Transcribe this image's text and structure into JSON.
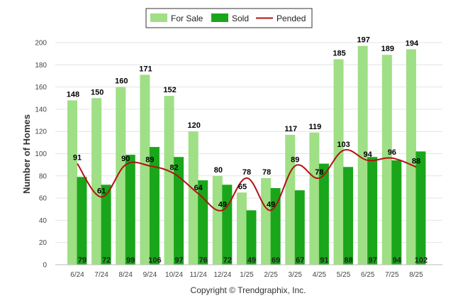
{
  "chart_data": {
    "type": "bar",
    "categories": [
      "6/24",
      "7/24",
      "8/24",
      "9/24",
      "10/24",
      "11/24",
      "12/24",
      "1/25",
      "2/25",
      "3/25",
      "4/25",
      "5/25",
      "6/25",
      "7/25",
      "8/25"
    ],
    "series": [
      {
        "name": "For Sale",
        "type": "bar",
        "color": "#9fdf85",
        "values": [
          148,
          150,
          160,
          171,
          152,
          120,
          80,
          65,
          78,
          117,
          119,
          185,
          197,
          189,
          194
        ]
      },
      {
        "name": "Sold",
        "type": "bar",
        "color": "#1aa61a",
        "values": [
          79,
          72,
          99,
          106,
          97,
          76,
          72,
          49,
          69,
          67,
          91,
          88,
          97,
          94,
          102
        ]
      },
      {
        "name": "Pended",
        "type": "line",
        "color": "#b31212",
        "values": [
          91,
          61,
          90,
          89,
          82,
          64,
          49,
          78,
          49,
          89,
          78,
          103,
          94,
          96,
          88
        ]
      }
    ],
    "ylabel": "Number of Homes",
    "ylim": [
      0,
      200
    ],
    "yticks": [
      "0",
      "20",
      "40",
      "60",
      "80",
      "100",
      "120",
      "140",
      "160",
      "180",
      "200"
    ],
    "grid": true,
    "legend_position": "top-center",
    "footer": "Copyright © Trendgraphix, Inc."
  }
}
